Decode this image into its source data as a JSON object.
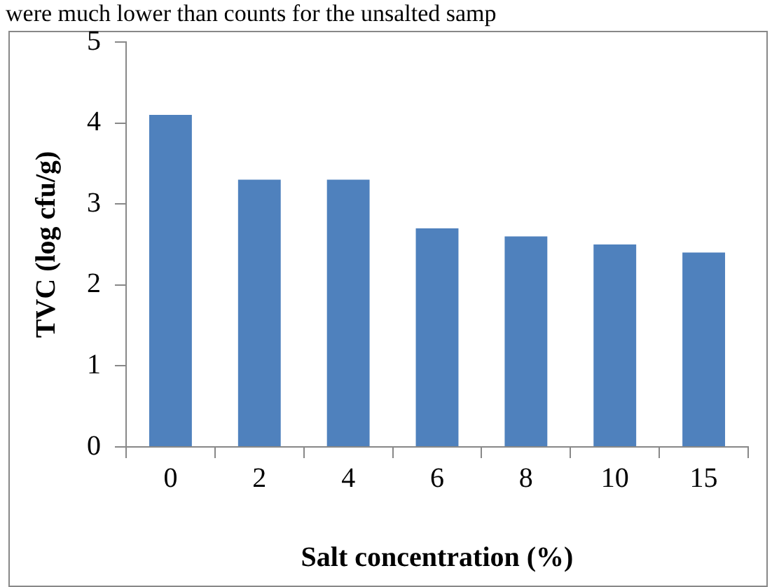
{
  "chart_data": {
    "type": "bar",
    "xlabel": "Salt concentration (%)",
    "ylabel": "TVC (log cfu/g)",
    "annotations": [
      "were much lower than counts for the unsalted samp"
    ],
    "categories": [
      "0",
      "2",
      "4",
      "6",
      "8",
      "10",
      "15"
    ],
    "values": [
      4.1,
      3.3,
      3.3,
      2.7,
      2.6,
      2.5,
      2.4
    ],
    "color": "#4f81bd",
    "ylim": [
      0,
      5
    ],
    "yticks": [
      0,
      1,
      2,
      3,
      4,
      5
    ],
    "grid": false,
    "legend": false
  }
}
